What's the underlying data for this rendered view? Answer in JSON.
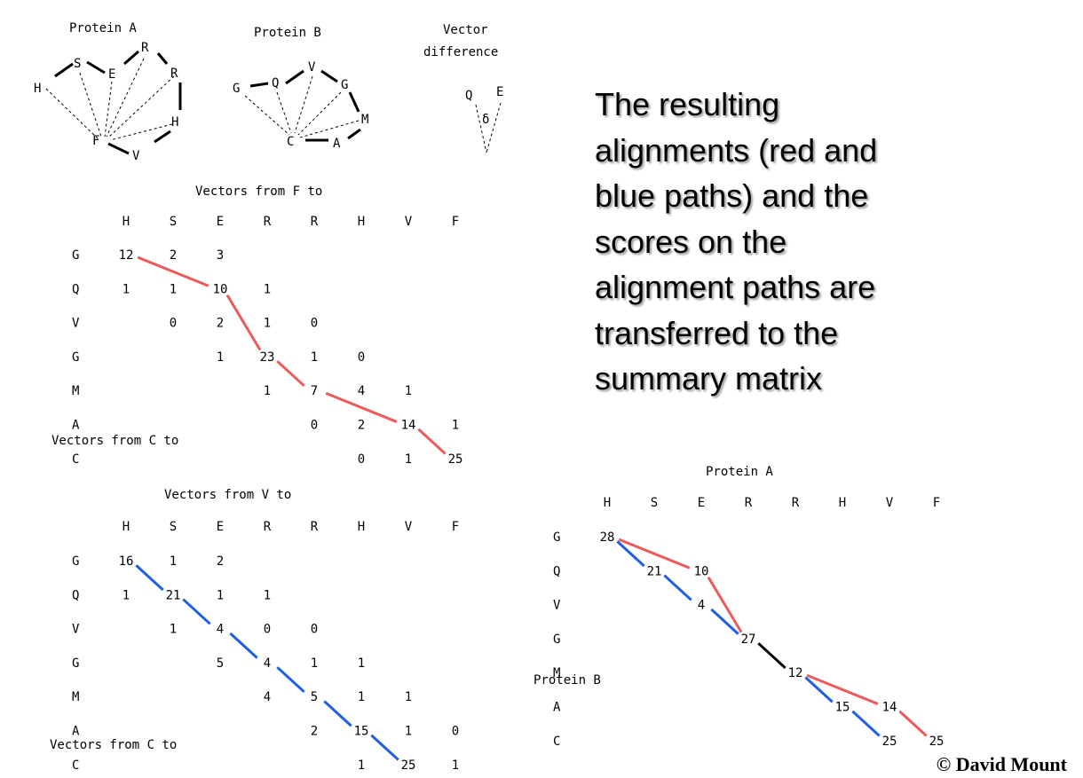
{
  "text": {
    "main_lines": [
      "The resulting",
      "alignments (red and",
      "blue paths) and the",
      "scores on the",
      "alignment paths are",
      "transferred to the",
      "summary matrix"
    ],
    "copyright": "© David Mount"
  },
  "colors": {
    "red": "#ec5b5b",
    "blue": "#1f5fe0",
    "black": "#000000"
  },
  "diagrams": {
    "protein_a": {
      "title": "Protein A",
      "residues": [
        "H",
        "S",
        "E",
        "R",
        "R",
        "H",
        "V",
        "F"
      ]
    },
    "protein_b": {
      "title": "Protein B",
      "residues": [
        "G",
        "Q",
        "V",
        "G",
        "M",
        "A",
        "C"
      ]
    },
    "vector_difference": {
      "title_line1": "Vector",
      "title_line2": "difference",
      "labels": [
        "Q",
        "E"
      ],
      "symbol": "δ"
    }
  },
  "matrices": {
    "from_f": {
      "title": "Vectors from F to",
      "corner_label": "Vectors from C to",
      "col_headers": [
        "H",
        "S",
        "E",
        "R",
        "R",
        "H",
        "V",
        "F"
      ],
      "row_headers": [
        "G",
        "Q",
        "V",
        "G",
        "M",
        "A",
        "C"
      ],
      "rows": [
        [
          "12",
          "2",
          "3",
          "",
          "",
          "",
          "",
          ""
        ],
        [
          "1",
          "1",
          "10",
          "1",
          "",
          "",
          "",
          ""
        ],
        [
          "",
          "0",
          "2",
          "1",
          "0",
          "",
          "",
          ""
        ],
        [
          "",
          "",
          "1",
          "23",
          "1",
          "0",
          "",
          ""
        ],
        [
          "",
          "",
          "",
          "1",
          "7",
          "4",
          "1",
          ""
        ],
        [
          "",
          "",
          "",
          "",
          "0",
          "2",
          "14",
          "1"
        ],
        [
          "",
          "",
          "",
          "",
          "",
          "0",
          "1",
          "25"
        ]
      ],
      "paths": [
        {
          "color": "red",
          "cells": [
            [
              0,
              0
            ],
            [
              1,
              2
            ],
            [
              3,
              3
            ],
            [
              4,
              4
            ],
            [
              5,
              6
            ],
            [
              6,
              7
            ]
          ]
        }
      ]
    },
    "from_v": {
      "title": "Vectors from V to",
      "corner_label": "Vectors from C to",
      "col_headers": [
        "H",
        "S",
        "E",
        "R",
        "R",
        "H",
        "V",
        "F"
      ],
      "row_headers": [
        "G",
        "Q",
        "V",
        "G",
        "M",
        "A",
        "C"
      ],
      "rows": [
        [
          "16",
          "1",
          "2",
          "",
          "",
          "",
          "",
          ""
        ],
        [
          "1",
          "21",
          "1",
          "1",
          "",
          "",
          "",
          ""
        ],
        [
          "",
          "1",
          "4",
          "0",
          "0",
          "",
          "",
          ""
        ],
        [
          "",
          "",
          "5",
          "4",
          "1",
          "1",
          "",
          ""
        ],
        [
          "",
          "",
          "",
          "4",
          "5",
          "1",
          "1",
          ""
        ],
        [
          "",
          "",
          "",
          "",
          "2",
          "15",
          "1",
          "0"
        ],
        [
          "",
          "",
          "",
          "",
          "",
          "1",
          "25",
          "1"
        ]
      ],
      "paths": [
        {
          "color": "blue",
          "cells": [
            [
              0,
              0
            ],
            [
              1,
              1
            ],
            [
              2,
              2
            ],
            [
              3,
              3
            ],
            [
              4,
              4
            ],
            [
              5,
              5
            ],
            [
              6,
              6
            ]
          ]
        }
      ]
    },
    "summary": {
      "title": "Protein A",
      "side_label": "Protein B",
      "col_headers": [
        "H",
        "S",
        "E",
        "R",
        "R",
        "H",
        "V",
        "F"
      ],
      "row_headers": [
        "G",
        "Q",
        "V",
        "G",
        "M",
        "A",
        "C"
      ],
      "rows": [
        [
          "28",
          "",
          "",
          "",
          "",
          "",
          "",
          ""
        ],
        [
          "",
          "21",
          "10",
          "",
          "",
          "",
          "",
          ""
        ],
        [
          "",
          "",
          "4",
          "",
          "",
          "",
          "",
          ""
        ],
        [
          "",
          "",
          "",
          "27",
          "",
          "",
          "",
          ""
        ],
        [
          "",
          "",
          "",
          "",
          "12",
          "",
          "",
          ""
        ],
        [
          "",
          "",
          "",
          "",
          "",
          "15",
          "14",
          ""
        ],
        [
          "",
          "",
          "",
          "",
          "",
          "",
          "25",
          "25"
        ]
      ],
      "paths": [
        {
          "color": "red",
          "cells": [
            [
              0,
              0
            ],
            [
              1,
              2
            ],
            [
              3,
              3
            ]
          ]
        },
        {
          "color": "blue",
          "cells": [
            [
              0,
              0
            ],
            [
              1,
              1
            ],
            [
              2,
              2
            ],
            [
              3,
              3
            ]
          ]
        },
        {
          "color": "black",
          "cells": [
            [
              3,
              3
            ],
            [
              4,
              4
            ]
          ]
        },
        {
          "color": "red",
          "cells": [
            [
              4,
              4
            ],
            [
              5,
              6
            ],
            [
              6,
              7
            ]
          ]
        },
        {
          "color": "blue",
          "cells": [
            [
              4,
              4
            ],
            [
              5,
              5
            ],
            [
              6,
              6
            ]
          ]
        }
      ]
    }
  }
}
